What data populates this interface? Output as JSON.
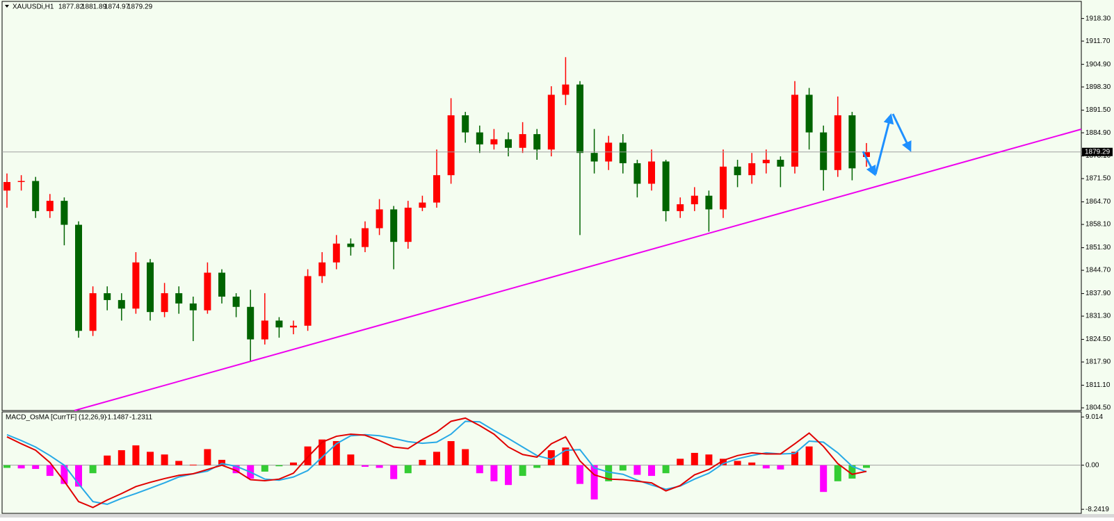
{
  "chart_data": [
    {
      "type": "candlestick",
      "title": "XAUUSDi,H1",
      "open": [
        1868,
        1870.5,
        1870.8,
        1862,
        1865,
        1858,
        1827,
        1838,
        1836,
        1833.5,
        1847,
        1832.5,
        1838,
        1835,
        1833,
        1844,
        1837,
        1834,
        1824.5,
        1830,
        1828,
        1828.5,
        1843,
        1847,
        1852.5,
        1851.5,
        1857,
        1862.5,
        1853,
        1863,
        1864.5,
        1872.5,
        1890,
        1885,
        1881.5,
        1883,
        1880.5,
        1884.5,
        1880,
        1896,
        1899,
        1879,
        1876.5,
        1882,
        1876,
        1870,
        1876.5,
        1862,
        1864,
        1866.5,
        1862.5,
        1875,
        1872.5,
        1876,
        1877,
        1875,
        1896,
        1885,
        1874,
        1890,
        1877.82
      ],
      "high": [
        1873,
        1872.5,
        1872,
        1867,
        1866,
        1859,
        1840,
        1840,
        1838,
        1850,
        1848,
        1841,
        1840,
        1837,
        1847,
        1845,
        1838,
        1839,
        1838,
        1831,
        1830,
        1845,
        1850,
        1855,
        1854,
        1859,
        1865.5,
        1863.5,
        1865,
        1866.5,
        1880,
        1895,
        1891,
        1887,
        1886,
        1885,
        1888,
        1886,
        1898.5,
        1907,
        1900,
        1886,
        1884,
        1884.5,
        1877,
        1880,
        1877,
        1866,
        1869,
        1868,
        1880,
        1877,
        1879,
        1880,
        1878,
        1900,
        1898,
        1887,
        1895.5,
        1891,
        1881.89
      ],
      "low": [
        1863,
        1868,
        1860,
        1860,
        1852,
        1825,
        1825.5,
        1833,
        1830,
        1832,
        1830,
        1831,
        1832,
        1824,
        1832,
        1835,
        1831,
        1818,
        1823,
        1825,
        1826,
        1827,
        1841,
        1845,
        1849,
        1850,
        1855,
        1845,
        1851,
        1862,
        1863,
        1870,
        1882,
        1879,
        1880,
        1878,
        1879,
        1877,
        1878,
        1893,
        1855,
        1873,
        1874,
        1873,
        1866,
        1868,
        1859,
        1860,
        1862,
        1856,
        1860,
        1869,
        1870,
        1873,
        1869,
        1873,
        1880,
        1868,
        1872,
        1871,
        1874.97
      ],
      "close": [
        1870.5,
        1870.8,
        1862,
        1865,
        1858,
        1827,
        1838,
        1836,
        1833.5,
        1847,
        1832.5,
        1838,
        1835,
        1833,
        1844,
        1837,
        1834,
        1824.5,
        1830,
        1828,
        1828.5,
        1843,
        1847,
        1852.5,
        1851.5,
        1857,
        1862.5,
        1853,
        1863,
        1864.5,
        1872.5,
        1890,
        1885,
        1881.5,
        1883,
        1880.5,
        1884.5,
        1880,
        1896,
        1899,
        1879,
        1876.5,
        1882,
        1876,
        1870,
        1876.5,
        1862,
        1864,
        1866.5,
        1862.5,
        1875,
        1872.5,
        1876,
        1877,
        1875,
        1896,
        1885,
        1874,
        1890,
        1874.5,
        1879.29
      ],
      "up_color": "#ff0000",
      "down_color": "#006400",
      "ylim": [
        1803.7,
        1923.3
      ],
      "yticks": [
        {
          "value": 1918.3,
          "label": "1918.30"
        },
        {
          "value": 1911.7,
          "label": "1911.70"
        },
        {
          "value": 1904.9,
          "label": "1904.90"
        },
        {
          "value": 1898.3,
          "label": "1898.30"
        },
        {
          "value": 1891.5,
          "label": "1891.50"
        },
        {
          "value": 1884.9,
          "label": "1884.90"
        },
        {
          "value": 1878.1,
          "label": "1878.10"
        },
        {
          "value": 1871.5,
          "label": "1871.50"
        },
        {
          "value": 1864.7,
          "label": "1864.70"
        },
        {
          "value": 1858.1,
          "label": "1858.10"
        },
        {
          "value": 1851.3,
          "label": "1851.30"
        },
        {
          "value": 1844.7,
          "label": "1844.70"
        },
        {
          "value": 1837.9,
          "label": "1837.90"
        },
        {
          "value": 1831.3,
          "label": "1831.30"
        },
        {
          "value": 1824.5,
          "label": "1824.50"
        },
        {
          "value": 1817.9,
          "label": "1817.90"
        },
        {
          "value": 1811.1,
          "label": "1811.10"
        },
        {
          "value": 1804.5,
          "label": "1804.50"
        }
      ],
      "grid": false
    },
    {
      "type": "macd",
      "title": "MACD_OsMA [CurrTF] (12,26,9)",
      "histogram": [
        -0.5,
        -0.6,
        -0.7,
        -2.0,
        -3.5,
        -4.0,
        -1.5,
        1.8,
        2.8,
        3.7,
        2.5,
        2.0,
        0.8,
        0.1,
        3.0,
        1.0,
        -1.5,
        -2.5,
        -1.2,
        -0.2,
        0.5,
        3.5,
        4.8,
        4.5,
        2.0,
        -0.3,
        -0.5,
        -2.6,
        -1.5,
        1.0,
        2.5,
        4.5,
        3.0,
        -1.5,
        -3.0,
        -3.7,
        -2.0,
        -0.5,
        2.8,
        3.3,
        -3.5,
        -6.4,
        -3.0,
        -1.0,
        -1.8,
        -2.0,
        -1.5,
        1.2,
        2.3,
        2.0,
        1.2,
        0.8,
        0.5,
        -0.6,
        -0.8,
        2.5,
        3.5,
        -5.0,
        -3.0,
        -2.5,
        -0.5
      ],
      "main": [
        5.3,
        4.0,
        2.8,
        0.5,
        -3.0,
        -6.8,
        -7.9,
        -6.5,
        -5.3,
        -4.0,
        -3.2,
        -2.5,
        -1.9,
        -1.6,
        -0.8,
        0.0,
        -1.0,
        -2.7,
        -2.9,
        -2.6,
        -1.5,
        1.5,
        4.3,
        5.4,
        5.8,
        5.6,
        4.6,
        3.4,
        3.1,
        4.8,
        6.2,
        8.2,
        8.8,
        7.4,
        5.8,
        3.4,
        2.0,
        1.5,
        4.0,
        5.3,
        0.8,
        -1.8,
        -2.6,
        -2.7,
        -3.0,
        -3.3,
        -4.8,
        -3.8,
        -1.8,
        -0.8,
        0.9,
        1.8,
        2.3,
        2.1,
        2.1,
        4.0,
        6.0,
        3.5,
        0.3,
        -1.7,
        -1.1487
      ],
      "signal": [
        5.7,
        4.6,
        3.4,
        1.8,
        0,
        -3.5,
        -6.8,
        -7.3,
        -6.2,
        -5.3,
        -4.3,
        -3.3,
        -2.2,
        -1.6,
        -1.1,
        0.3,
        -0.2,
        -1.3,
        -2.6,
        -2.8,
        -2.2,
        -1.0,
        1.5,
        4.0,
        5.5,
        5.7,
        5.5,
        5.0,
        4.4,
        4.1,
        4.3,
        5.8,
        8.2,
        8.1,
        6.5,
        5.0,
        3.4,
        1.8,
        1.1,
        2.8,
        2.9,
        -0.5,
        -1.3,
        -1.7,
        -2.8,
        -3.7,
        -4.5,
        -3.9,
        -2.6,
        -1.5,
        0.3,
        1.2,
        1.8,
        2.3,
        2.1,
        2.2,
        4.5,
        4.3,
        2.3,
        -0.2,
        -1.2311
      ],
      "main_color": "#e00000",
      "signal_color": "#27a9e6",
      "up_color": "#ff0000",
      "falling_color": "#ff00ff",
      "rising_color": "#33cc33",
      "ylim": [
        -9.0,
        9.95
      ],
      "yticks": [
        9.014,
        {
          "value": 0,
          "label": "0.00"
        },
        -8.2419
      ]
    }
  ]
}
